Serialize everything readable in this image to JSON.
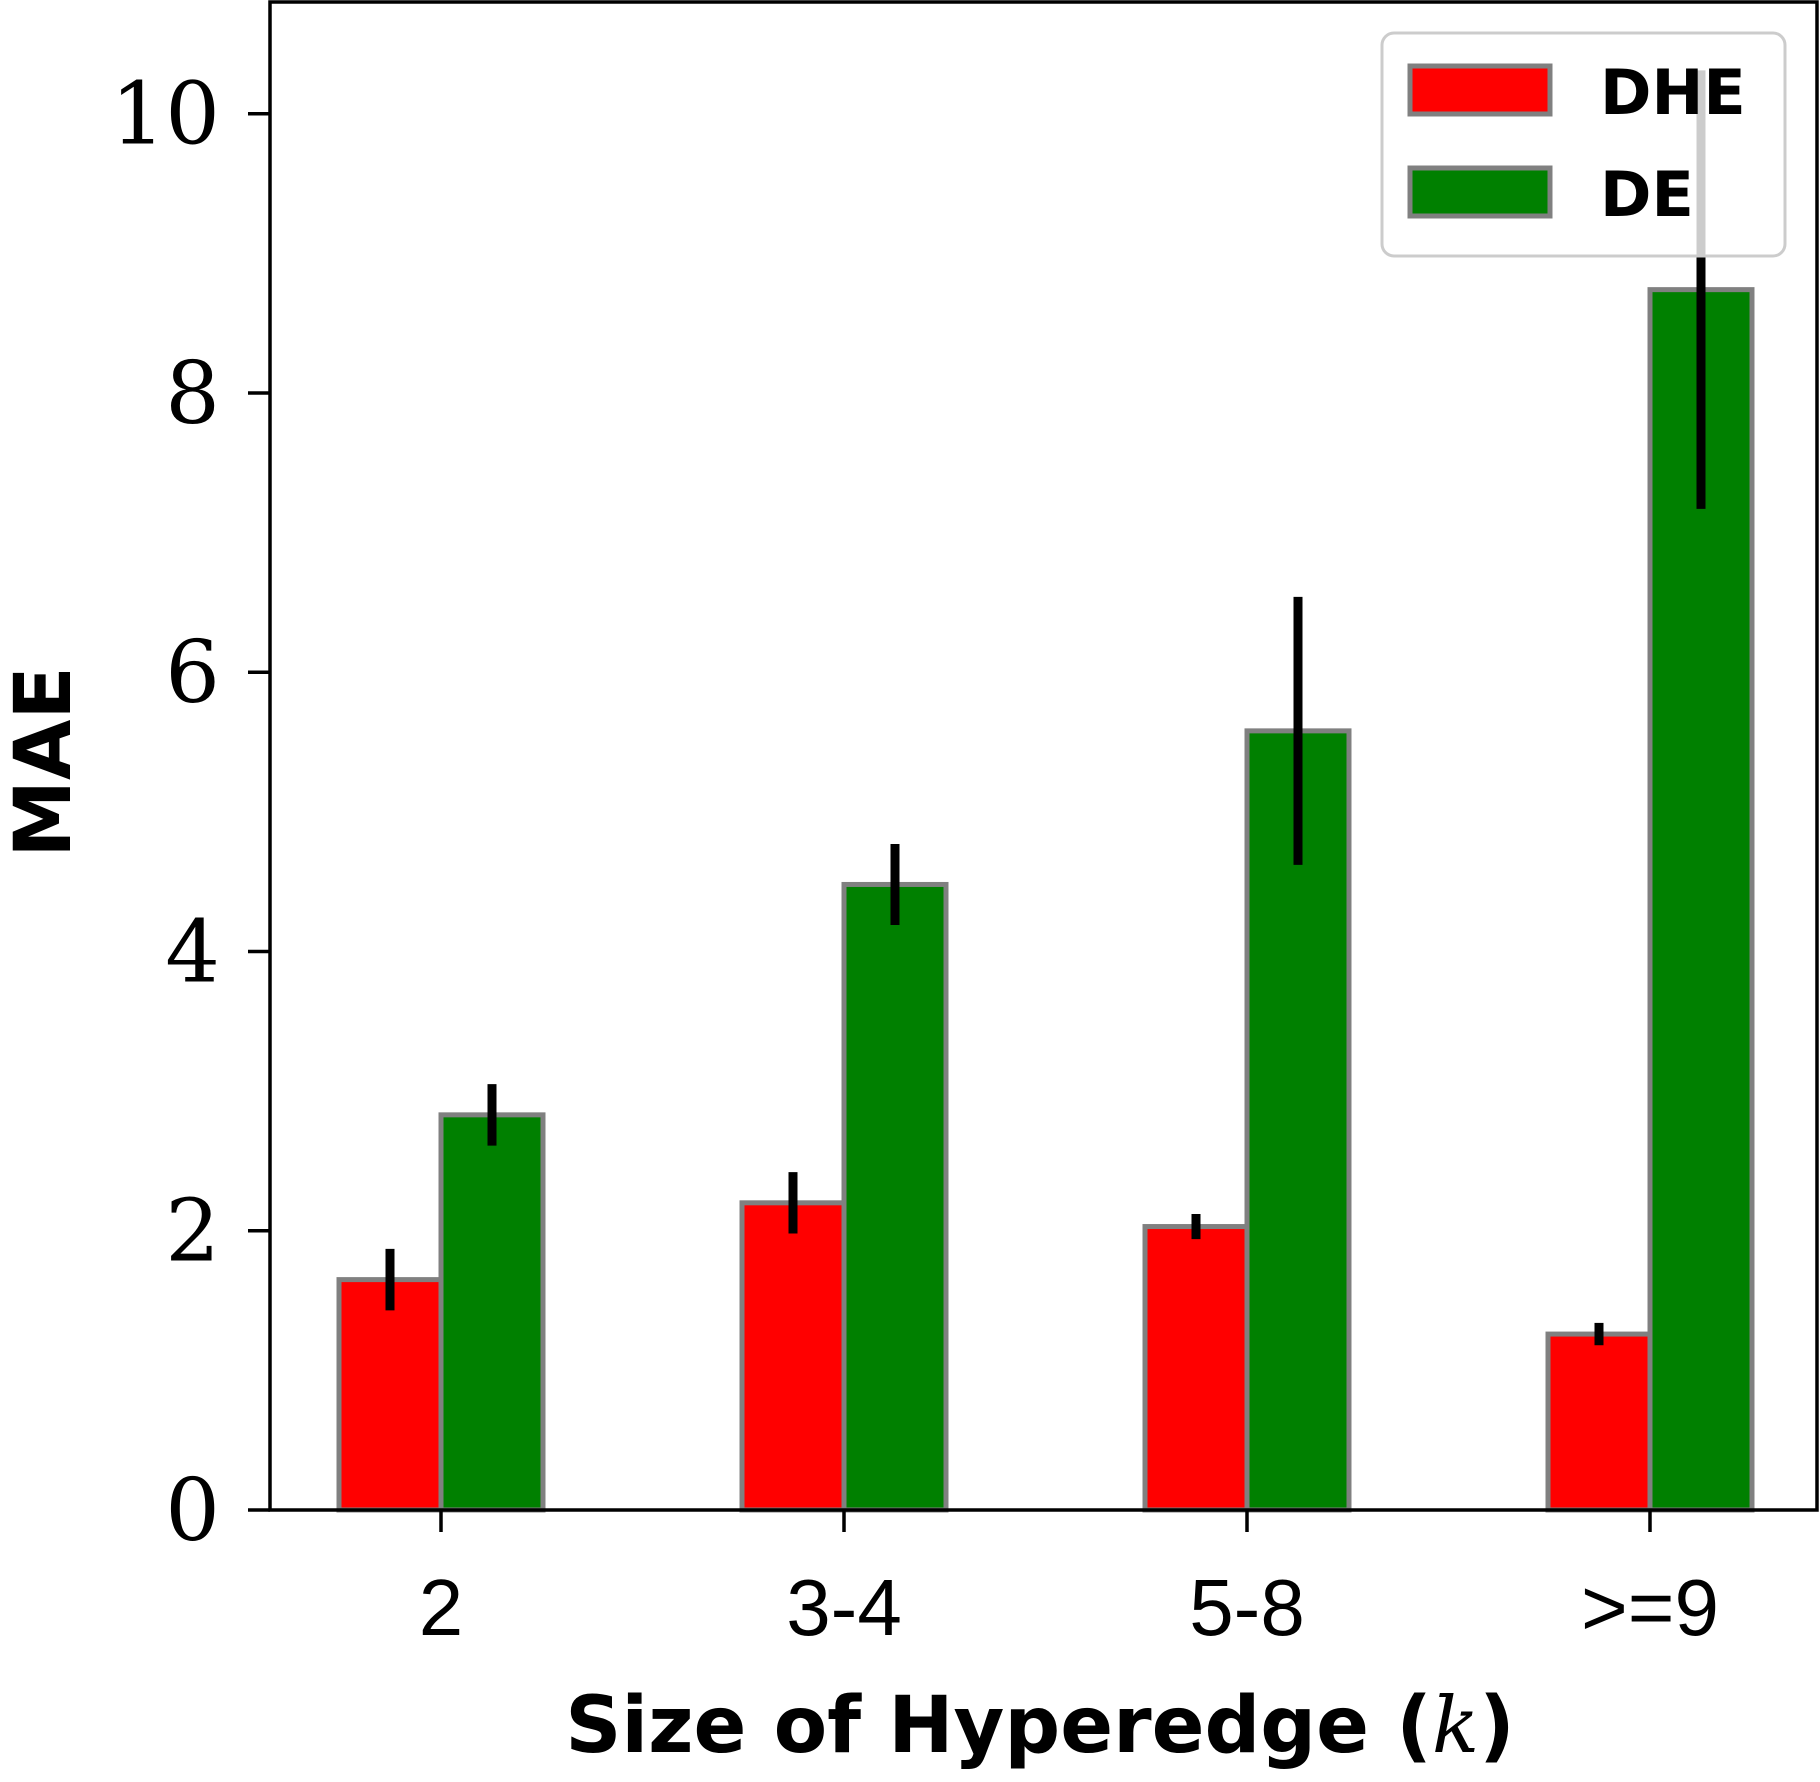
{
  "chart_data": {
    "type": "bar",
    "title": "",
    "xlabel": "Size of Hyperedge (k)",
    "ylabel": "MAE",
    "categories": [
      "2",
      "3-4",
      "5-8",
      ">=9"
    ],
    "ylim": [
      0,
      10.8
    ],
    "yticks": [
      0,
      2,
      4,
      6,
      8,
      10
    ],
    "ytick_labels": [
      "0",
      "2",
      "4",
      "6",
      "8",
      "10"
    ],
    "grid": false,
    "legend_position": "top-right",
    "series": [
      {
        "name": "DHE",
        "color": "#ff0000",
        "values": [
          1.65,
          2.2,
          2.03,
          1.26
        ],
        "errors": [
          0.22,
          0.22,
          0.09,
          0.08
        ]
      },
      {
        "name": "DE",
        "color": "#008000",
        "values": [
          2.83,
          4.48,
          5.58,
          8.74
        ],
        "errors": [
          0.22,
          0.29,
          0.96,
          1.57
        ]
      }
    ],
    "bar_edge_color": "#808080",
    "error_bar_color": "#000000"
  }
}
